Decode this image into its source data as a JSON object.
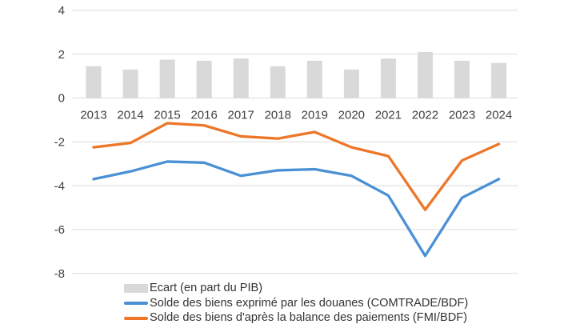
{
  "chart_data": {
    "type": "combo",
    "categories": [
      "2013",
      "2014",
      "2015",
      "2016",
      "2017",
      "2018",
      "2019",
      "2020",
      "2021",
      "2022",
      "2023",
      "2024"
    ],
    "series": [
      {
        "name": "Ecart (en part du PIB)",
        "type": "bar",
        "color": "#D9D9D9",
        "values": [
          1.45,
          1.3,
          1.75,
          1.7,
          1.8,
          1.45,
          1.7,
          1.3,
          1.8,
          2.1,
          1.7,
          1.6
        ]
      },
      {
        "name": "Solde des biens exprimé par les douanes (COMTRADE/BDF)",
        "type": "line",
        "color": "#4A90D5",
        "values": [
          -3.7,
          -3.35,
          -2.9,
          -2.95,
          -3.55,
          -3.3,
          -3.25,
          -3.55,
          -4.45,
          -7.2,
          -4.55,
          -3.7
        ]
      },
      {
        "name": "Solde des biens d'après la balance des paiements (FMI/BDF)",
        "type": "line",
        "color": "#ED7628",
        "values": [
          -2.25,
          -2.05,
          -1.15,
          -1.25,
          -1.75,
          -1.85,
          -1.55,
          -2.25,
          -2.65,
          -5.1,
          -2.85,
          -2.1
        ]
      }
    ],
    "title": "",
    "xlabel": "",
    "ylabel": "",
    "yticks": [
      4,
      2,
      0,
      -2,
      -4,
      -6,
      -8
    ],
    "ylim": [
      -8,
      4
    ],
    "grid": true,
    "legend_position": "bottom",
    "axis_label_color": "#404040",
    "gridline_color": "#DBDBDB"
  }
}
